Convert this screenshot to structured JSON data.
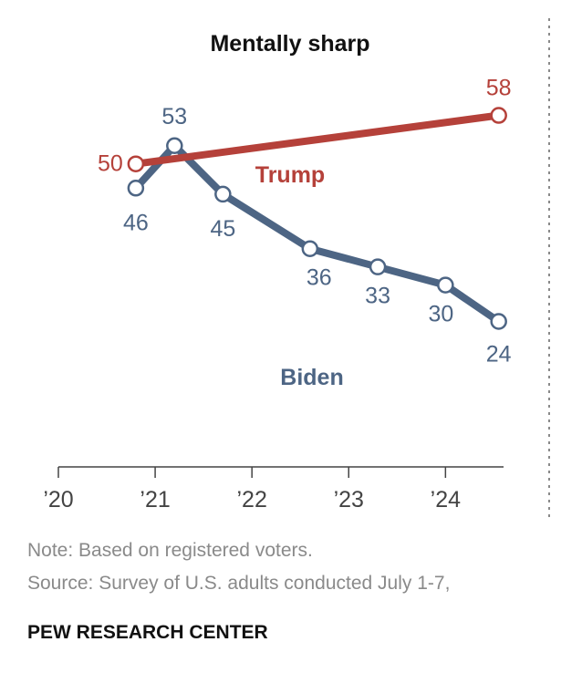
{
  "chart_data": {
    "type": "line",
    "title": "Mentally sharp",
    "x_tick_labels": [
      "’20",
      "’21",
      "’22",
      "’23",
      "’24"
    ],
    "x_tick_years": [
      2020,
      2021,
      2022,
      2023,
      2024
    ],
    "x_range": [
      2020.0,
      2024.6
    ],
    "y_range": [
      0,
      65
    ],
    "grid": false,
    "legend": "inline labels",
    "series": [
      {
        "name": "Trump",
        "color": "#b5413a",
        "x": [
          2020.8,
          2024.55
        ],
        "values": [
          50,
          58
        ],
        "labels": [
          "50",
          "58"
        ]
      },
      {
        "name": "Biden",
        "color": "#4d6584",
        "x": [
          2020.8,
          2021.2,
          2021.7,
          2022.6,
          2023.3,
          2024.0,
          2024.55
        ],
        "values": [
          46,
          53,
          45,
          36,
          33,
          30,
          24
        ],
        "labels": [
          "46",
          "53",
          "45",
          "36",
          "33",
          "30",
          "24"
        ]
      }
    ]
  },
  "notes": {
    "note": "Note: Based on registered voters.",
    "source": "Source: Survey of U.S. adults conducted July 1-7,"
  },
  "footer": "PEW RESEARCH CENTER"
}
